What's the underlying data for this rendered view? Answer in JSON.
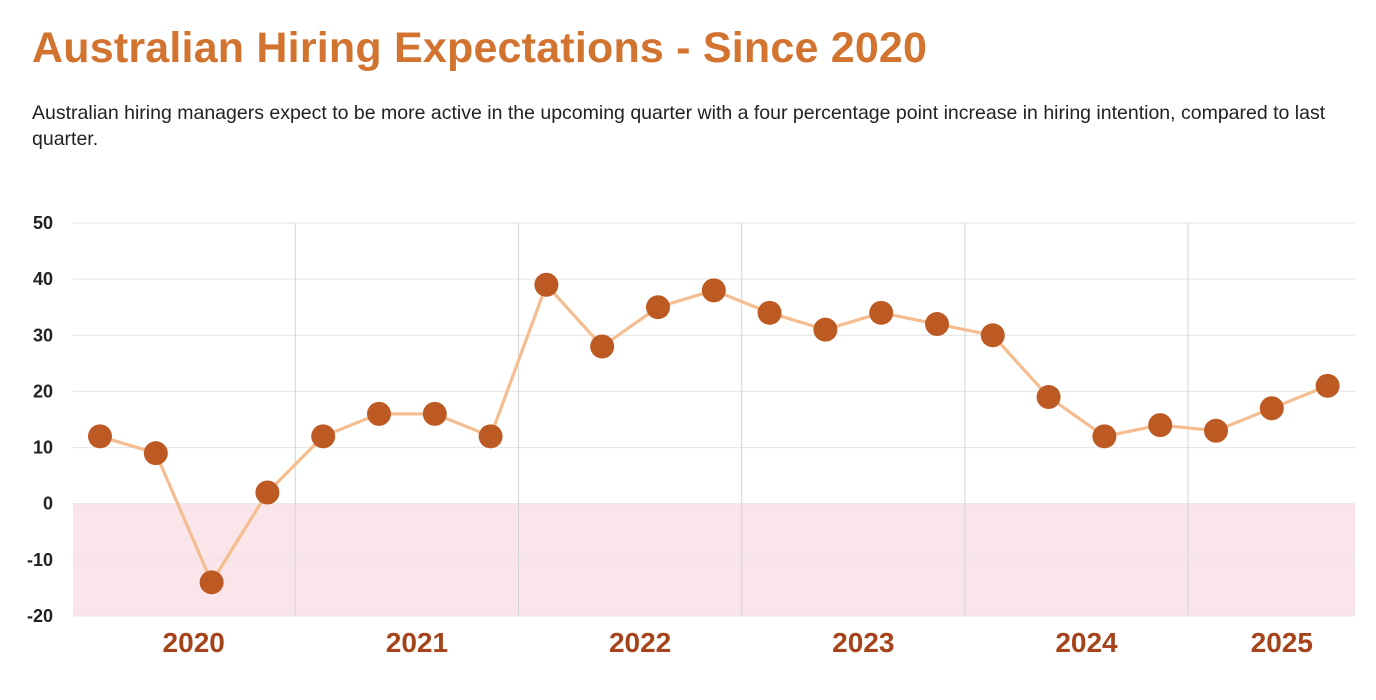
{
  "title": "Australian Hiring Expectations - Since 2020",
  "subtitle": "Australian hiring managers expect to be more active in the upcoming quarter with a four percentage point increase in hiring intention, compared to last quarter.",
  "chart_data": {
    "type": "line",
    "title": "Australian Hiring Expectations - Since 2020",
    "xlabel": "",
    "ylabel": "",
    "ylim": [
      -20,
      50
    ],
    "yticks": [
      50,
      40,
      30,
      20,
      10,
      0,
      -10,
      -20
    ],
    "x_group_labels": [
      "2020",
      "2021",
      "2022",
      "2023",
      "2024",
      "2025"
    ],
    "grid": true,
    "negative_region_shaded": true,
    "colors": {
      "line": "#f5bd90",
      "marker": "#bd5a23",
      "negative_fill": "#fae6ea",
      "grid": "#e4e4e4",
      "year_divider": "#d4d4d4"
    },
    "series": [
      {
        "values": [
          12,
          9,
          -14,
          2,
          12,
          16,
          16,
          12,
          39,
          28,
          35,
          38,
          34,
          31,
          34,
          32,
          30,
          19,
          12,
          14,
          13,
          17,
          21
        ]
      }
    ]
  }
}
